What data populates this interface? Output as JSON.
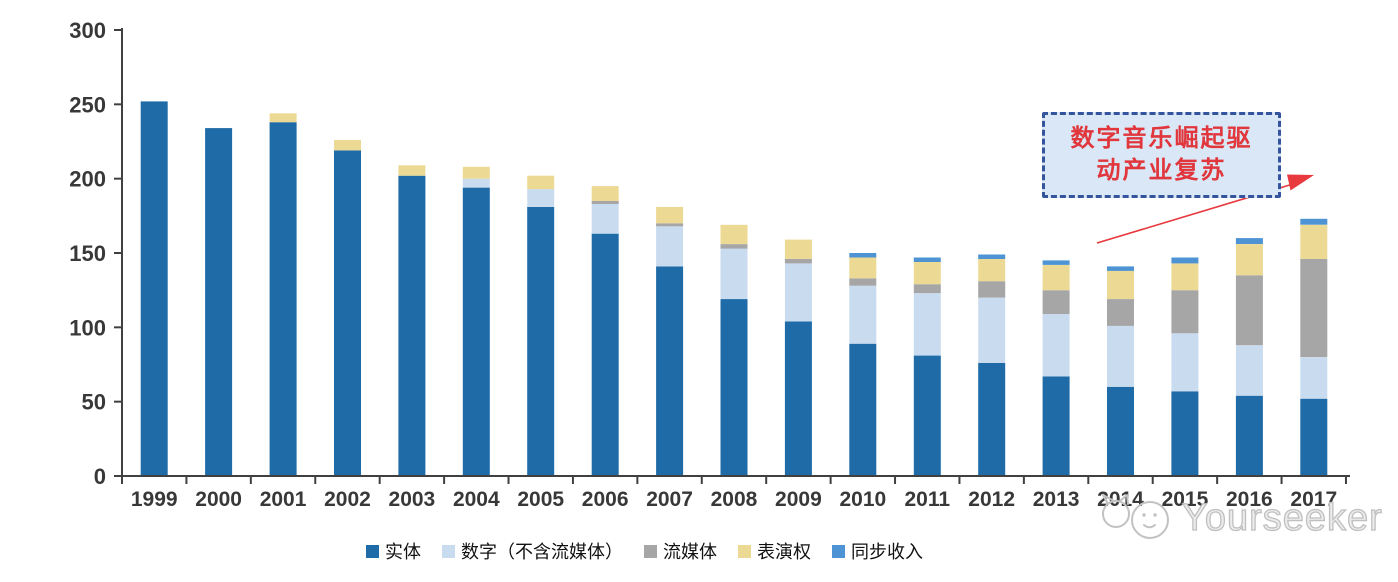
{
  "chart_data": {
    "type": "bar",
    "stacked": true,
    "categories": [
      "1999",
      "2000",
      "2001",
      "2002",
      "2003",
      "2004",
      "2005",
      "2006",
      "2007",
      "2008",
      "2009",
      "2010",
      "2011",
      "2012",
      "2013",
      "2014",
      "2015",
      "2016",
      "2017"
    ],
    "series": [
      {
        "name": "实体",
        "color": "#1e6ba8",
        "values": [
          252,
          234,
          238,
          219,
          202,
          194,
          181,
          163,
          141,
          119,
          104,
          89,
          81,
          76,
          67,
          60,
          57,
          54,
          52
        ]
      },
      {
        "name": "数字（不含流媒体）",
        "color": "#c9dbee",
        "values": [
          0,
          0,
          0,
          0,
          0,
          6,
          12,
          20,
          27,
          34,
          39,
          39,
          42,
          44,
          42,
          41,
          39,
          34,
          28
        ]
      },
      {
        "name": "流媒体",
        "color": "#a6a6a6",
        "values": [
          0,
          0,
          0,
          0,
          0,
          0,
          0,
          2,
          2,
          3,
          3,
          5,
          6,
          11,
          16,
          18,
          29,
          47,
          66
        ]
      },
      {
        "name": "表演权",
        "color": "#ecd994",
        "values": [
          0,
          0,
          6,
          7,
          7,
          8,
          9,
          10,
          11,
          13,
          13,
          14,
          15,
          15,
          17,
          19,
          18,
          21,
          23
        ]
      },
      {
        "name": "同步收入",
        "color": "#4e94d4",
        "values": [
          0,
          0,
          0,
          0,
          0,
          0,
          0,
          0,
          0,
          0,
          0,
          3,
          3,
          3,
          3,
          3,
          4,
          4,
          4
        ]
      }
    ],
    "ylim": [
      0,
      300
    ],
    "yticks": [
      0,
      50,
      100,
      150,
      200,
      250,
      300
    ],
    "xlabel": "",
    "ylabel": "",
    "grid": false,
    "legend_position": "bottom"
  },
  "annotation": {
    "line1": "数字音乐崛起驱",
    "line2": "动产业复苏",
    "text_color": "#e0363c",
    "box_fill": "#d9e7f6",
    "box_border": "#34549e",
    "arrow_color": "#e8393f"
  },
  "watermark": {
    "text": "Yourseeker"
  },
  "axis": {
    "line_color": "#404040",
    "label_color": "#383838"
  }
}
